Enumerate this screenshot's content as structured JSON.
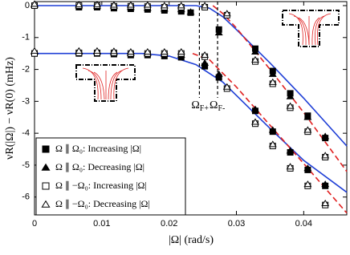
{
  "chart_data": {
    "type": "scatter",
    "xlabel": "|Ω| (rad/s)",
    "ylabel": "νR(|Ω|) − νR(0) (mHz)",
    "xlim": [
      0,
      0.0464
    ],
    "ylim": [
      -6.56,
      0.126
    ],
    "xticks": [
      0,
      0.01,
      0.02,
      0.03,
      0.04
    ],
    "yticks": [
      0,
      -1,
      -2,
      -3,
      -4,
      -5,
      -6
    ],
    "legend": "lower left",
    "series": [
      {
        "name": "Ω ∥ Ω₀:  Increasing |Ω|",
        "color": "#000",
        "marker": "square",
        "filled": true,
        "x": [
          0,
          0.0066,
          0.0093,
          0.0118,
          0.0143,
          0.0168,
          0.0193,
          0.0218,
          0.0232,
          0.0274,
          0.0328,
          0.0354,
          0.038,
          0.0406,
          0.0432,
          0,
          0.0066,
          0.0093,
          0.0118,
          0.0143,
          0.0168,
          0.0193,
          0.0218,
          0.0253,
          0.0274,
          0.0328,
          0.0354,
          0.038,
          0.0406,
          0.0432
        ],
        "values": [
          0,
          -0.05,
          -0.05,
          -0.08,
          -0.1,
          -0.12,
          -0.15,
          -0.18,
          -0.22,
          -0.75,
          -1.35,
          -2.05,
          -2.75,
          -3.45,
          -4.15,
          -1.5,
          -1.5,
          -1.5,
          -1.52,
          -1.55,
          -1.55,
          -1.58,
          -1.62,
          -1.9,
          -2.25,
          -3.3,
          -3.95,
          -4.6,
          -5.15,
          -5.65
        ]
      },
      {
        "name": "Ω ∥ Ω₀:  Decreasing |Ω|",
        "color": "#000",
        "marker": "triangle",
        "filled": true,
        "x": [
          0,
          0.0066,
          0.0093,
          0.0118,
          0.0143,
          0.0168,
          0.0193,
          0.0218,
          0.0232,
          0.0274,
          0.0328,
          0.0354,
          0.038,
          0.0406,
          0.0432,
          0,
          0.0066,
          0.0093,
          0.0118,
          0.0143,
          0.0168,
          0.0193,
          0.0218,
          0.0253,
          0.0274,
          0.0328,
          0.0354,
          0.038,
          0.0406,
          0.0432
        ],
        "values": [
          0.02,
          0,
          -0.02,
          -0.02,
          -0.05,
          -0.08,
          -0.1,
          -0.12,
          -0.2,
          -0.85,
          -1.45,
          -2.15,
          -2.85,
          -3.5,
          -4.1,
          -1.45,
          -1.45,
          -1.45,
          -1.47,
          -1.5,
          -1.5,
          -1.52,
          -1.55,
          -1.8,
          -2.15,
          -3.25,
          -3.9,
          -4.55,
          -5.1,
          -5.6
        ]
      },
      {
        "name": "Ω ∥ −Ω₀: Increasing |Ω|",
        "color": "#000",
        "marker": "square",
        "filled": false,
        "x": [
          0,
          0.0066,
          0.0093,
          0.0118,
          0.0143,
          0.0168,
          0.0193,
          0.0218,
          0.0253,
          0.0286,
          0.0328,
          0.0354,
          0.038,
          0.0406,
          0.0432,
          0,
          0.0066,
          0.0093,
          0.0118,
          0.0143,
          0.0168,
          0.0193,
          0.0218,
          0.0253,
          0.0286,
          0.0328,
          0.0354,
          0.038,
          0.0406,
          0.0432
        ],
        "values": [
          0,
          0,
          0,
          -0.02,
          -0.02,
          -0.03,
          -0.05,
          -0.05,
          -0.05,
          -0.3,
          -1.75,
          -2.45,
          -3.2,
          -3.95,
          -4.75,
          -1.5,
          -1.48,
          -1.48,
          -1.48,
          -1.5,
          -1.5,
          -1.5,
          -1.5,
          -1.6,
          -2.6,
          -3.7,
          -4.4,
          -5.1,
          -5.65,
          -6.25
        ]
      },
      {
        "name": "Ω ∥ −Ω₀: Decreasing |Ω|",
        "color": "#000",
        "marker": "triangle",
        "filled": false,
        "x": [
          0,
          0.0066,
          0.0093,
          0.0118,
          0.0143,
          0.0168,
          0.0193,
          0.0218,
          0.0253,
          0.0286,
          0.0328,
          0.0354,
          0.038,
          0.0406,
          0.0432,
          0,
          0.0066,
          0.0093,
          0.0118,
          0.0143,
          0.0168,
          0.0193,
          0.0218,
          0.0253,
          0.0286,
          0.0328,
          0.0354,
          0.038,
          0.0406,
          0.0432
        ],
        "values": [
          0.05,
          0.03,
          0.03,
          0.02,
          0.02,
          0.02,
          0,
          0,
          0,
          -0.25,
          -1.7,
          -2.4,
          -3.15,
          -3.9,
          -4.7,
          -1.42,
          -1.42,
          -1.42,
          -1.43,
          -1.45,
          -1.45,
          -1.45,
          -1.45,
          -1.55,
          -2.55,
          -3.65,
          -4.35,
          -5.05,
          -5.6,
          -6.2
        ]
      }
    ],
    "curves": [
      {
        "color": "#1f3fd6",
        "dash": false,
        "x": [
          0,
          0.024,
          0.026,
          0.028,
          0.03,
          0.035,
          0.04,
          0.0464
        ],
        "values": [
          0,
          0,
          -0.08,
          -0.35,
          -0.75,
          -1.8,
          -2.9,
          -4.4
        ]
      },
      {
        "color": "#e02020",
        "dash": true,
        "x": [
          0.0265,
          0.028,
          0.03,
          0.035,
          0.04,
          0.0464
        ],
        "values": [
          0,
          -0.25,
          -0.7,
          -2.0,
          -3.35,
          -5.2
        ]
      },
      {
        "color": "#1f3fd6",
        "dash": false,
        "x": [
          0,
          0.016,
          0.02,
          0.024,
          0.028,
          0.035,
          0.04,
          0.0464
        ],
        "values": [
          -1.5,
          -1.5,
          -1.58,
          -1.85,
          -2.4,
          -3.85,
          -4.85,
          -5.85
        ]
      },
      {
        "color": "#e02020",
        "dash": true,
        "x": [
          0.0235,
          0.026,
          0.03,
          0.035,
          0.04,
          0.0464
        ],
        "values": [
          -1.5,
          -1.7,
          -2.55,
          -3.75,
          -4.95,
          -6.5
        ]
      }
    ],
    "annotations": [
      {
        "symbol": "Ω",
        "subscript": "F+",
        "x": 0.0245
      },
      {
        "symbol": "Ω",
        "subscript": "F-",
        "x": 0.0272
      }
    ]
  }
}
